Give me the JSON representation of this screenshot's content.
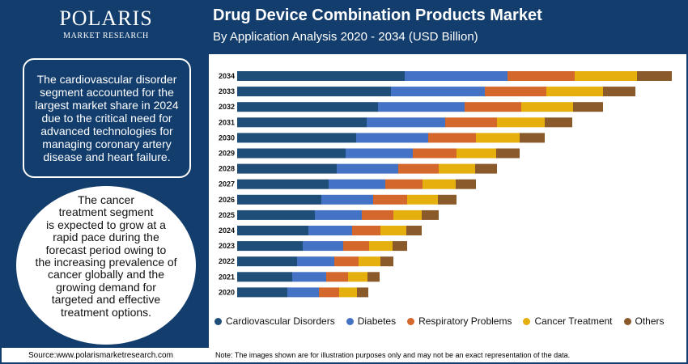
{
  "brand": {
    "name": "POLARIS",
    "sub": "MARKET RESEARCH"
  },
  "header": {
    "title": "Drug Device Combination Products Market",
    "subtitle": "By Application Analysis 2020 - 2034 (USD Billion)"
  },
  "insights": {
    "box1": "The cardiovascular disorder segment accounted for the largest market share in 2024 due to the critical need for advanced technologies for managing coronary artery disease and heart failure.",
    "box2_lines": [
      "The cancer",
      "treatment segment",
      "is expected to grow at a",
      "rapid pace during the",
      "forecast period owing to",
      "the increasing prevalence of",
      "cancer globally and the",
      "growing demand for",
      "targeted and effective",
      "treatment options."
    ]
  },
  "footer": {
    "source": "Source:www.polarismarketresearch.com",
    "note": "Note: The images shown are for illustration purposes only and may not be an exact representation of the data."
  },
  "chart_data": {
    "type": "bar",
    "orientation": "horizontal",
    "stacked": true,
    "categories": [
      "2034",
      "2033",
      "2032",
      "2031",
      "2030",
      "2029",
      "2028",
      "2027",
      "2026",
      "2025",
      "2024",
      "2023",
      "2022",
      "2021",
      "2020"
    ],
    "series": [
      {
        "name": "Cardiovascular Disorders",
        "color": "#1f4e79",
        "values": [
          207,
          190,
          174,
          160,
          147,
          134,
          123,
          113,
          104,
          96,
          88,
          81,
          74,
          68,
          62
        ]
      },
      {
        "name": "Diabetes",
        "color": "#4472c4",
        "values": [
          127,
          116,
          107,
          97,
          89,
          83,
          76,
          70,
          64,
          58,
          54,
          50,
          46,
          42,
          39
        ]
      },
      {
        "name": "Respiratory Problems",
        "color": "#d4682c",
        "values": [
          83,
          76,
          70,
          64,
          59,
          54,
          50,
          46,
          42,
          39,
          35,
          32,
          30,
          27,
          25
        ]
      },
      {
        "name": "Cancer Treatment",
        "color": "#e5af0e",
        "values": [
          77,
          70,
          64,
          59,
          54,
          49,
          45,
          41,
          38,
          35,
          32,
          29,
          27,
          24,
          22
        ]
      },
      {
        "name": "Others",
        "color": "#8b5a2b",
        "values": [
          43,
          40,
          37,
          34,
          31,
          29,
          27,
          25,
          23,
          21,
          19,
          18,
          16,
          15,
          14
        ]
      }
    ],
    "xlim": [
      0,
      540
    ],
    "grid": false,
    "legend_position": "bottom"
  }
}
